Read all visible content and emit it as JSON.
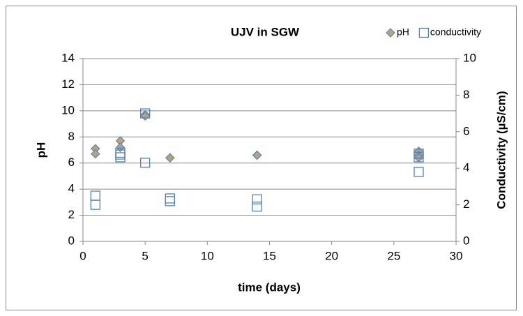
{
  "chart_data": {
    "type": "scatter",
    "title": "UJV in SGW",
    "x_label": "time (days)",
    "y_label": "pH",
    "y2_label": "Conductivity (µS/cm)",
    "xlim": [
      0,
      30
    ],
    "xticks": [
      0,
      5,
      10,
      15,
      20,
      25,
      30
    ],
    "ylim": [
      0,
      14
    ],
    "yticks": [
      0,
      2,
      4,
      6,
      8,
      10,
      12,
      14
    ],
    "y2lim": [
      0,
      10
    ],
    "y2ticks": [
      0,
      2,
      4,
      6,
      8,
      10
    ],
    "grid": true,
    "legend": "top-right",
    "series": [
      {
        "name": "pH",
        "marker": "diamond",
        "color": "#b8a27a",
        "edge": "#4f81bd",
        "x": [
          1,
          1,
          3,
          3,
          5,
          5,
          7,
          7,
          14,
          14,
          27,
          27,
          27
        ],
        "values": [
          7.1,
          6.7,
          7.7,
          7.2,
          9.7,
          9.6,
          6.4,
          6.4,
          6.6,
          6.6,
          6.9,
          6.6,
          6.4
        ]
      },
      {
        "name": "conductivity",
        "marker": "square",
        "color": "#4f81bd",
        "axis": "y2",
        "x": [
          1,
          1,
          3,
          3,
          3,
          5,
          5,
          7,
          7,
          14,
          14,
          27,
          27,
          27
        ],
        "values": [
          2.5,
          2.0,
          4.85,
          4.6,
          4.75,
          7.0,
          4.3,
          2.35,
          2.2,
          2.3,
          1.9,
          4.6,
          4.8,
          3.8
        ]
      }
    ]
  }
}
